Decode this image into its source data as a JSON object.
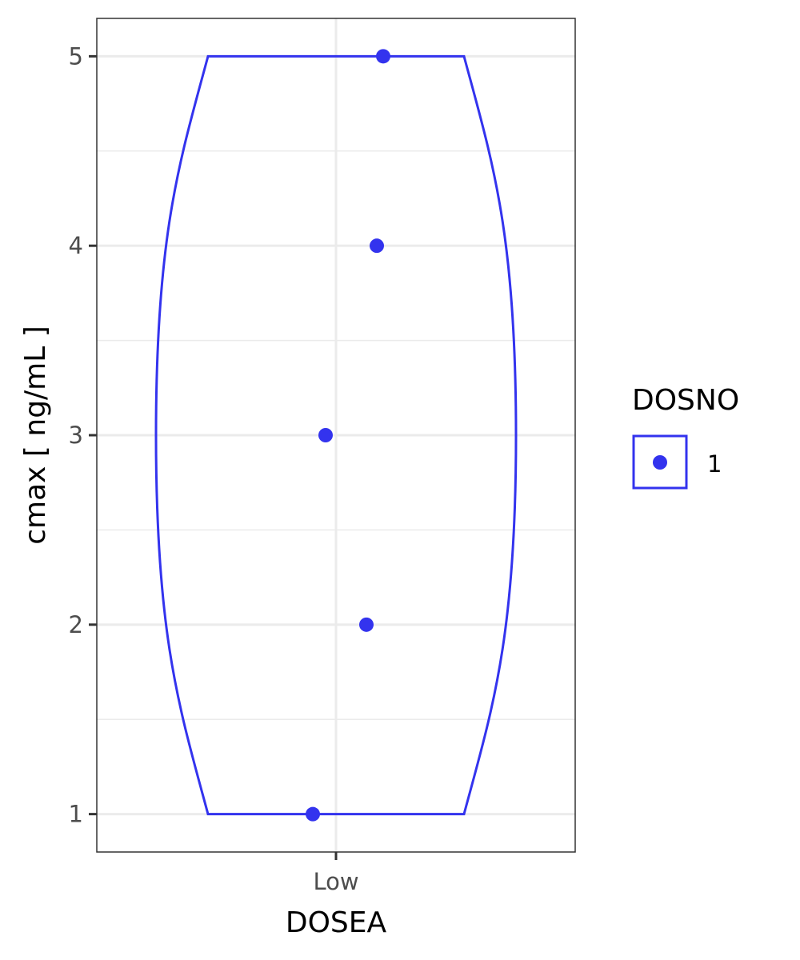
{
  "chart_data": {
    "type": "violin+scatter",
    "categories": [
      "Low"
    ],
    "x_label": "DOSEA",
    "y_label": "cmax  [ ng/mL ]",
    "ylim": [
      0.8,
      5.2
    ],
    "y_ticks": [
      "1",
      "2",
      "3",
      "4",
      "5"
    ],
    "points": [
      {
        "x": "Low",
        "y": 5
      },
      {
        "x": "Low",
        "y": 4
      },
      {
        "x": "Low",
        "y": 3
      },
      {
        "x": "Low",
        "y": 2
      },
      {
        "x": "Low",
        "y": 1
      }
    ],
    "violin": {
      "x": "Low",
      "y_min": 1,
      "y_max": 5
    },
    "grid": true,
    "legend": {
      "title": "DOSNO",
      "position": "right",
      "entries": [
        {
          "label": "1"
        }
      ]
    },
    "series_color": "#3333ee",
    "grid_color": "#ebebeb"
  }
}
